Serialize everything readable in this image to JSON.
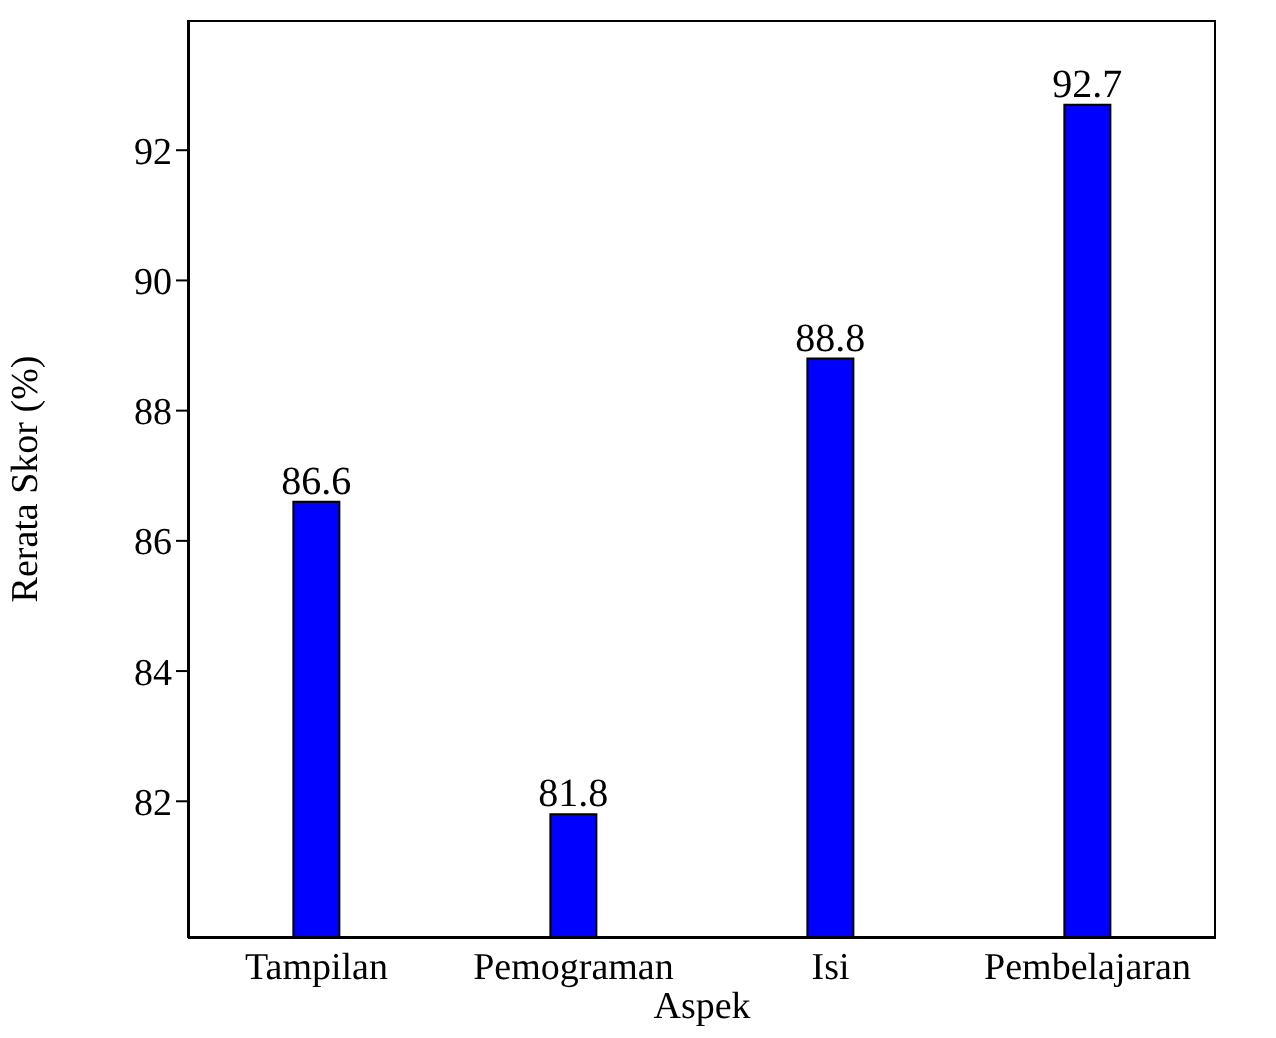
{
  "chart_data": {
    "type": "bar",
    "categories": [
      "Tampilan",
      "Pemograman",
      "Isi",
      "Pembelajaran"
    ],
    "values": [
      86.6,
      81.8,
      88.8,
      92.7
    ],
    "color": "#0000ff",
    "xlabel": "Aspek",
    "ylabel": "Rerata Skor (%)",
    "ylim": [
      79.9,
      94
    ],
    "yticks": [
      82,
      84,
      86,
      88,
      90,
      92
    ],
    "data_labels": true
  }
}
